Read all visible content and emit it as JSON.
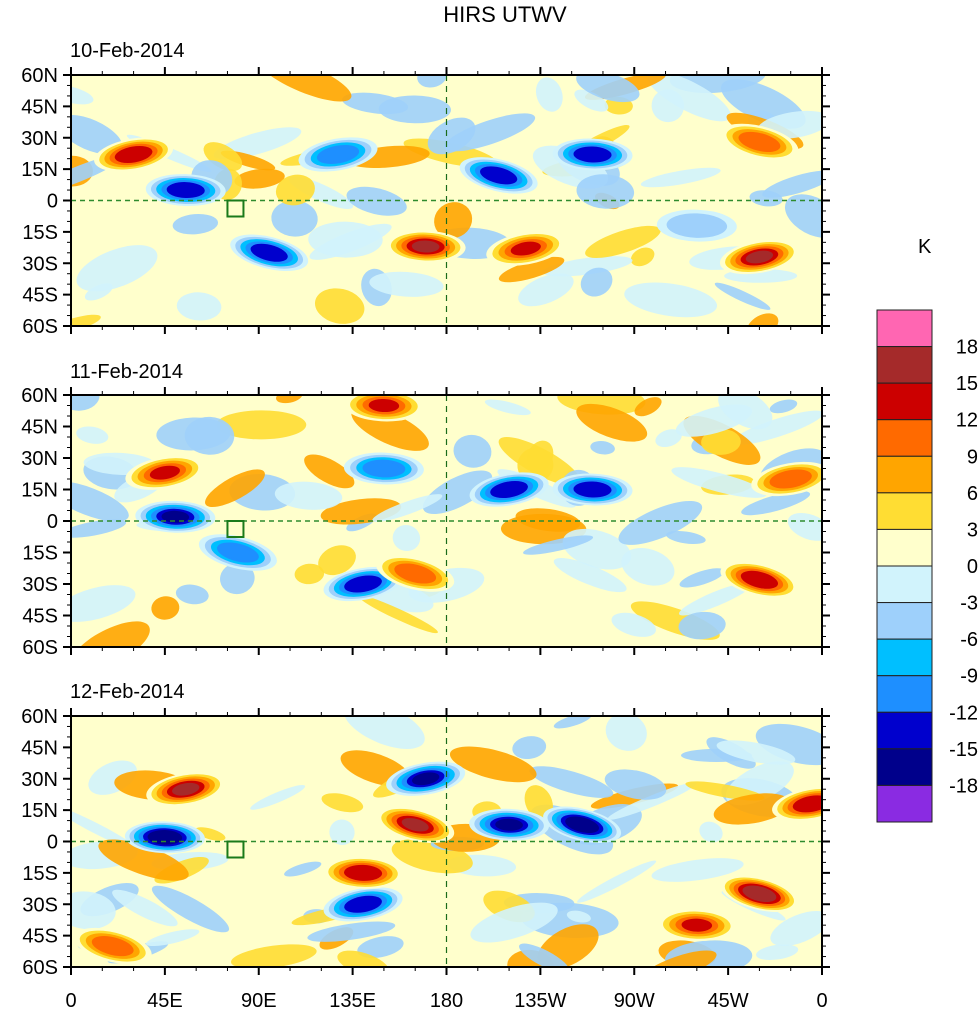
{
  "chart_data": {
    "type": "heatmap",
    "title": "HIRS UTWV",
    "colorbar": {
      "unit": "K",
      "levels": [
        18,
        15,
        12,
        9,
        6,
        3,
        0,
        -3,
        -6,
        -9,
        -12,
        -15,
        -18
      ],
      "colors": [
        "#ff66b2",
        "#a52a2a",
        "#cc0000",
        "#ff6a00",
        "#ffa500",
        "#ffdd33",
        "#ffffcc",
        "#d1f3fc",
        "#9ed0fb",
        "#00bfff",
        "#1e8fff",
        "#0000cd",
        "#00008b",
        "#8a2be2"
      ]
    },
    "x_ticks": [
      "0",
      "45E",
      "90E",
      "135E",
      "180",
      "135W",
      "90W",
      "45W",
      "0"
    ],
    "y_ticks": [
      "60N",
      "45N",
      "30N",
      "15N",
      "0",
      "15S",
      "30S",
      "45S",
      "60S"
    ],
    "xlim": [
      0,
      360
    ],
    "ylim": [
      -60,
      60
    ],
    "panels": [
      {
        "title": "10-Feb-2014",
        "features": [
          {
            "lon": 30,
            "lat": 22,
            "value": 15
          },
          {
            "lon": 55,
            "lat": 5,
            "value": -15
          },
          {
            "lon": 95,
            "lat": -25,
            "value": -15
          },
          {
            "lon": 128,
            "lat": 22,
            "value": -12
          },
          {
            "lon": 170,
            "lat": -22,
            "value": 16
          },
          {
            "lon": 205,
            "lat": 12,
            "value": -15
          },
          {
            "lon": 218,
            "lat": -23,
            "value": 13
          },
          {
            "lon": 250,
            "lat": 22,
            "value": -15
          },
          {
            "lon": 330,
            "lat": 28,
            "value": 12
          },
          {
            "lon": 330,
            "lat": -27,
            "value": 16
          },
          {
            "lon": 300,
            "lat": -12,
            "value": -6
          }
        ]
      },
      {
        "title": "11-Feb-2014",
        "features": [
          {
            "lon": 45,
            "lat": 23,
            "value": 14
          },
          {
            "lon": 50,
            "lat": 2,
            "value": -16
          },
          {
            "lon": 80,
            "lat": -15,
            "value": -12
          },
          {
            "lon": 140,
            "lat": -30,
            "value": -15
          },
          {
            "lon": 150,
            "lat": 25,
            "value": -12
          },
          {
            "lon": 165,
            "lat": -25,
            "value": 12
          },
          {
            "lon": 210,
            "lat": 15,
            "value": -15
          },
          {
            "lon": 250,
            "lat": 15,
            "value": -15
          },
          {
            "lon": 330,
            "lat": -28,
            "value": 15
          },
          {
            "lon": 345,
            "lat": 20,
            "value": 12
          },
          {
            "lon": 150,
            "lat": 55,
            "value": 13
          }
        ]
      },
      {
        "title": "12-Feb-2014",
        "features": [
          {
            "lon": 55,
            "lat": 25,
            "value": 16
          },
          {
            "lon": 45,
            "lat": 2,
            "value": -18
          },
          {
            "lon": 165,
            "lat": 8,
            "value": 16
          },
          {
            "lon": 170,
            "lat": 30,
            "value": -16
          },
          {
            "lon": 210,
            "lat": 8,
            "value": -16
          },
          {
            "lon": 245,
            "lat": 8,
            "value": -18
          },
          {
            "lon": 140,
            "lat": -30,
            "value": -15
          },
          {
            "lon": 140,
            "lat": -15,
            "value": 15
          },
          {
            "lon": 330,
            "lat": -25,
            "value": 18
          },
          {
            "lon": 355,
            "lat": 18,
            "value": 15
          },
          {
            "lon": 300,
            "lat": -40,
            "value": 13
          },
          {
            "lon": 20,
            "lat": -50,
            "value": 12
          }
        ]
      }
    ]
  }
}
